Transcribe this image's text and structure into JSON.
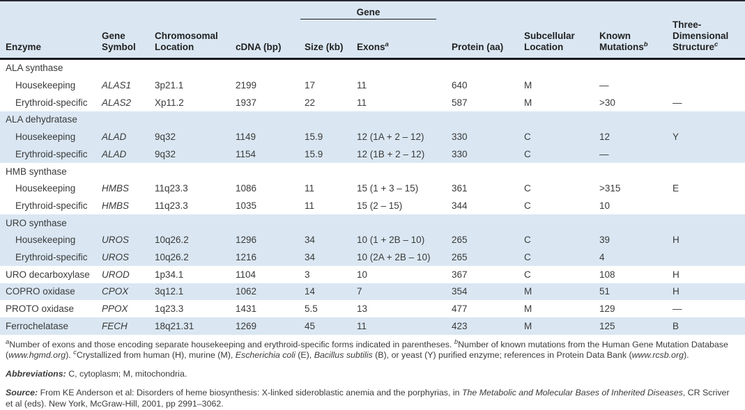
{
  "table": {
    "gene_group_label": "Gene",
    "header_cells": [
      {
        "lines": [
          "Enzyme"
        ]
      },
      {
        "lines": [
          "Gene",
          "Symbol"
        ]
      },
      {
        "lines": [
          "Chromosomal",
          "Location"
        ]
      },
      {
        "lines": [
          "cDNA (bp)"
        ]
      },
      {
        "lines": [
          "Size (kb)"
        ]
      },
      {
        "lines": [
          "Exons"
        ],
        "sup": "a"
      },
      {
        "lines": [
          "Protein (aa)"
        ]
      },
      {
        "lines": [
          "Subcellular",
          "Location"
        ]
      },
      {
        "lines": [
          "Known",
          "Mutations"
        ],
        "sup": "b"
      },
      {
        "lines": [
          "Three-",
          "Dimensional",
          "Structure"
        ],
        "sup": "c"
      }
    ],
    "rows": [
      {
        "type": "group",
        "shade": "white",
        "cells": [
          "ALA synthase",
          "",
          "",
          "",
          "",
          "",
          "",
          "",
          "",
          ""
        ]
      },
      {
        "type": "sub",
        "shade": "white",
        "cells": [
          "Housekeeping",
          "ALAS1",
          "3p21.1",
          "2199",
          "17",
          "11",
          "640",
          "M",
          "—",
          ""
        ]
      },
      {
        "type": "sub",
        "shade": "white",
        "cells": [
          "Erythroid-specific",
          "ALAS2",
          "Xp11.2",
          "1937",
          "22",
          "11",
          "587",
          "M",
          ">30",
          "—"
        ]
      },
      {
        "type": "group",
        "shade": "blue",
        "cells": [
          "ALA dehydratase",
          "",
          "",
          "",
          "",
          "",
          "",
          "",
          "",
          ""
        ]
      },
      {
        "type": "sub",
        "shade": "blue",
        "cells": [
          "Housekeeping",
          "ALAD",
          "9q32",
          "1149",
          "15.9",
          "12 (1A + 2 – 12)",
          "330",
          "C",
          "12",
          "Y"
        ]
      },
      {
        "type": "sub",
        "shade": "blue",
        "cells": [
          "Erythroid-specific",
          "ALAD",
          "9q32",
          "1154",
          "15.9",
          "12 (1B + 2 – 12)",
          "330",
          "C",
          "—",
          ""
        ]
      },
      {
        "type": "group",
        "shade": "white",
        "cells": [
          "HMB synthase",
          "",
          "",
          "",
          "",
          "",
          "",
          "",
          "",
          ""
        ]
      },
      {
        "type": "sub",
        "shade": "white",
        "cells": [
          "Housekeeping",
          "HMBS",
          "11q23.3",
          "1086",
          "11",
          "15 (1 + 3 – 15)",
          "361",
          "C",
          ">315",
          "E"
        ]
      },
      {
        "type": "sub",
        "shade": "white",
        "cells": [
          "Erythroid-specific",
          "HMBS",
          "11q23.3",
          "1035",
          "11",
          "15 (2 – 15)",
          "344",
          "C",
          "10",
          ""
        ]
      },
      {
        "type": "group",
        "shade": "blue",
        "cells": [
          "URO synthase",
          "",
          "",
          "",
          "",
          "",
          "",
          "",
          "",
          ""
        ]
      },
      {
        "type": "sub",
        "shade": "blue",
        "cells": [
          "Housekeeping",
          "UROS",
          "10q26.2",
          "1296",
          "34",
          "10 (1 + 2B – 10)",
          "265",
          "C",
          "39",
          "H"
        ]
      },
      {
        "type": "sub",
        "shade": "blue",
        "cells": [
          "Erythroid-specific",
          "UROS",
          "10q26.2",
          "1216",
          "34",
          "10 (2A + 2B – 10)",
          "265",
          "C",
          "4",
          ""
        ]
      },
      {
        "type": "plain",
        "shade": "white",
        "cells": [
          "URO decarboxylase",
          "UROD",
          "1p34.1",
          "1104",
          "3",
          "10",
          "367",
          "C",
          "108",
          "H"
        ]
      },
      {
        "type": "plain",
        "shade": "blue",
        "cells": [
          "COPRO oxidase",
          "CPOX",
          "3q12.1",
          "1062",
          "14",
          "7",
          "354",
          "M",
          "51",
          "H"
        ]
      },
      {
        "type": "plain",
        "shade": "white",
        "cells": [
          "PROTO oxidase",
          "PPOX",
          "1q23.3",
          "1431",
          "5.5",
          "13",
          "477",
          "M",
          "129",
          "—"
        ]
      },
      {
        "type": "plain",
        "shade": "blue",
        "cells": [
          "Ferrochelatase",
          "FECH",
          "18q21.31",
          "1269",
          "45",
          "11",
          "423",
          "M",
          "125",
          "B"
        ]
      }
    ]
  },
  "footnotes": {
    "paragraphs": [
      {
        "name": "footnote-abc",
        "segments": [
          {
            "style": "sup-italic",
            "text": "a"
          },
          {
            "style": "normal",
            "text": "Number of exons and those encoding separate housekeeping and erythroid-specific forms indicated in parentheses.  "
          },
          {
            "style": "sup-italic",
            "text": "b"
          },
          {
            "style": "normal",
            "text": "Number of known mutations from the Human Gene Mutation Database ("
          },
          {
            "style": "italic",
            "text": "www.hgmd.org"
          },
          {
            "style": "normal",
            "text": ").  "
          },
          {
            "style": "sup-italic",
            "text": "c"
          },
          {
            "style": "normal",
            "text": "Crystallized from human (H), murine (M), "
          },
          {
            "style": "italic",
            "text": "Escherichia coli"
          },
          {
            "style": "normal",
            "text": " (E), "
          },
          {
            "style": "italic",
            "text": "Bacillus subtilis"
          },
          {
            "style": "normal",
            "text": " (B), or yeast (Y) purified enzyme; references in Protein Data Bank ("
          },
          {
            "style": "italic",
            "text": "www.rcsb.org"
          },
          {
            "style": "normal",
            "text": ")."
          }
        ]
      },
      {
        "name": "abbreviations",
        "segments": [
          {
            "style": "bold-italic",
            "text": "Abbreviations:"
          },
          {
            "style": "normal",
            "text": " C, cytoplasm; M, mitochondria."
          }
        ]
      },
      {
        "name": "source",
        "segments": [
          {
            "style": "bold-italic",
            "text": "Source:"
          },
          {
            "style": "normal",
            "text": " From KE Anderson et al: Disorders of heme biosynthesis: X-linked sideroblastic anemia and the porphyrias, in "
          },
          {
            "style": "italic",
            "text": "The Metabolic and Molecular Bases of Inherited Diseases"
          },
          {
            "style": "normal",
            "text": ", CR Scriver et al (eds). New York, McGraw-Hill, 2001, pp 2991–3062."
          }
        ]
      }
    ]
  }
}
